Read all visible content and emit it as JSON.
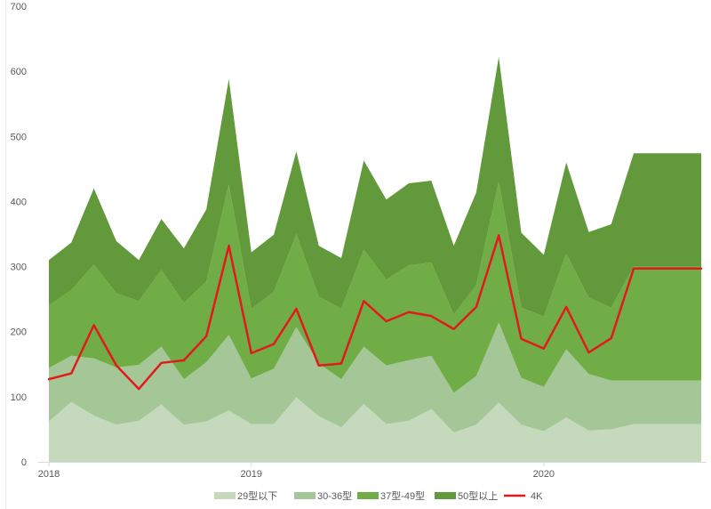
{
  "chart_data": {
    "type": "area",
    "stacked": true,
    "title": "",
    "xlabel": "",
    "ylabel": "",
    "ylim": [
      0,
      700
    ],
    "yticks": [
      0,
      100,
      200,
      300,
      400,
      500,
      600,
      700
    ],
    "x_tick_labels": [
      {
        "index": 0,
        "label": "2018"
      },
      {
        "index": 9,
        "label": "2019"
      },
      {
        "index": 22,
        "label": "2020"
      }
    ],
    "point_count": 30,
    "grid": false,
    "legend_position": "bottom",
    "series": [
      {
        "name": "29型以下",
        "color": "#c5d9bd",
        "values": [
          62,
          92,
          71,
          57,
          63,
          88,
          57,
          62,
          79,
          58,
          58,
          99,
          70,
          53,
          89,
          58,
          63,
          81,
          45,
          57,
          91,
          57,
          47,
          68,
          48,
          50,
          58,
          58,
          58,
          58
        ]
      },
      {
        "name": "30-36型",
        "color": "#a5c797",
        "values": [
          82,
          71,
          88,
          88,
          86,
          89,
          70,
          91,
          116,
          70,
          85,
          108,
          81,
          74,
          88,
          90,
          93,
          82,
          61,
          75,
          123,
          72,
          68,
          105,
          87,
          75,
          67,
          67,
          67,
          67
        ]
      },
      {
        "name": "37型-49型",
        "color": "#70ad47",
        "values": [
          96,
          101,
          144,
          114,
          98,
          118,
          117,
          124,
          231,
          107,
          118,
          143,
          103,
          108,
          149,
          132,
          146,
          143,
          120,
          140,
          217,
          108,
          108,
          147,
          117,
          112,
          175,
          175,
          175,
          175
        ]
      },
      {
        "name": "50型以上",
        "color": "#61993b",
        "values": [
          70,
          73,
          117,
          80,
          63,
          78,
          84,
          111,
          162,
          87,
          88,
          127,
          78,
          78,
          137,
          123,
          126,
          126,
          106,
          142,
          191,
          115,
          95,
          140,
          101,
          128,
          174,
          174,
          174,
          174
        ]
      }
    ],
    "line_series": {
      "name": "4K",
      "color": "#e31a1c",
      "values": [
        127,
        136,
        210,
        148,
        112,
        152,
        156,
        193,
        332,
        167,
        181,
        235,
        148,
        151,
        247,
        216,
        230,
        224,
        204,
        238,
        348,
        189,
        174,
        238,
        168,
        190,
        297,
        297,
        297,
        297
      ]
    }
  },
  "legend": [
    {
      "label": "29型以下",
      "color": "#c5d9bd",
      "kind": "area"
    },
    {
      "label": "30-36型",
      "color": "#a5c797",
      "kind": "area"
    },
    {
      "label": "37型-49型",
      "color": "#70ad47",
      "kind": "area"
    },
    {
      "label": "50型以上",
      "color": "#61993b",
      "kind": "area"
    },
    {
      "label": "4K",
      "color": "#e31a1c",
      "kind": "line"
    }
  ]
}
